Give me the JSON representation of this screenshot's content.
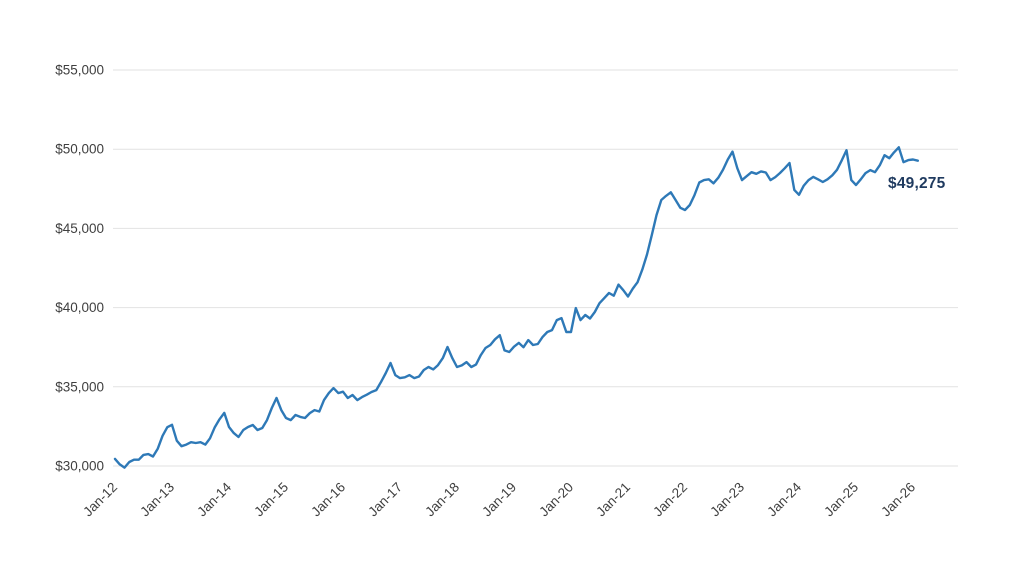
{
  "chart_data": {
    "type": "line",
    "title": "",
    "xlabel": "",
    "ylabel": "",
    "frequency": "monthly",
    "x_start": "Jan-12",
    "x_end": "Feb-26",
    "ylim": [
      30000,
      55000
    ],
    "grid": "horizontal",
    "legend": "none",
    "y_tick_values": [
      30000,
      35000,
      40000,
      45000,
      50000,
      55000
    ],
    "y_tick_labels": [
      "$30,000",
      "$35,000",
      "$40,000",
      "$45,000",
      "$50,000",
      "$55,000"
    ],
    "x_tick_labels": [
      "Jan-12",
      "Jan-13",
      "Jan-14",
      "Jan-15",
      "Jan-16",
      "Jan-17",
      "Jan-18",
      "Jan-19",
      "Jan-20",
      "Jan-21",
      "Jan-22",
      "Jan-23",
      "Jan-24",
      "Jan-25",
      "Jan-26"
    ],
    "series": [
      {
        "name": "value",
        "values": [
          30450,
          30100,
          29900,
          30250,
          30400,
          30400,
          30700,
          30750,
          30600,
          31100,
          31900,
          32450,
          32600,
          31600,
          31250,
          31350,
          31500,
          31450,
          31500,
          31350,
          31750,
          32450,
          32950,
          33350,
          32460,
          32080,
          31830,
          32270,
          32460,
          32590,
          32270,
          32400,
          32900,
          33660,
          34290,
          33530,
          33030,
          32900,
          33220,
          33100,
          33030,
          33340,
          33530,
          33440,
          34160,
          34600,
          34920,
          34600,
          34690,
          34290,
          34480,
          34160,
          34350,
          34500,
          34670,
          34790,
          35300,
          35870,
          36500,
          35740,
          35550,
          35600,
          35740,
          35550,
          35650,
          36060,
          36250,
          36100,
          36370,
          36810,
          37510,
          36810,
          36250,
          36350,
          36560,
          36250,
          36400,
          37000,
          37450,
          37640,
          38000,
          38260,
          37300,
          37200,
          37530,
          37770,
          37500,
          37950,
          37640,
          37700,
          38140,
          38460,
          38580,
          39210,
          39340,
          38460,
          38460,
          39970,
          39210,
          39530,
          39310,
          39720,
          40280,
          40600,
          40920,
          40750,
          41450,
          41100,
          40700,
          41200,
          41600,
          42400,
          43350,
          44580,
          45840,
          46790,
          47050,
          47280,
          46800,
          46300,
          46160,
          46480,
          47100,
          47900,
          48050,
          48100,
          47850,
          48200,
          48700,
          49350,
          49850,
          48800,
          48050,
          48300,
          48550,
          48450,
          48600,
          48530,
          48050,
          48240,
          48500,
          48800,
          49130,
          47430,
          47120,
          47700,
          48050,
          48250,
          48100,
          47930,
          48100,
          48350,
          48700,
          49300,
          49940,
          48050,
          47740,
          48100,
          48490,
          48680,
          48550,
          48990,
          49620,
          49430,
          49800,
          50120,
          49180,
          49310,
          49350,
          49275
        ]
      }
    ],
    "last_value": 49275,
    "last_value_label": "$49,275",
    "colors": {
      "line": "#2E79B7",
      "annotation": "#1F3A5F",
      "gridline": "#E2E2E2",
      "tick_label": "#3F3F3F",
      "background": "#FFFFFF"
    }
  }
}
